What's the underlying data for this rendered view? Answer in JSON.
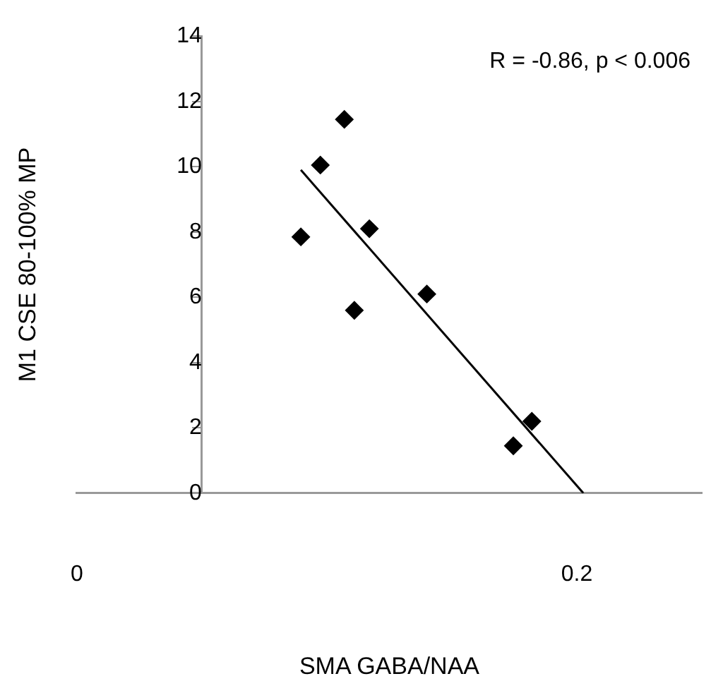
{
  "chart_data": {
    "type": "scatter",
    "xlabel": "SMA GABA/NAA",
    "ylabel": "M1 CSE 80-100% MP",
    "annotations": [
      "R = -0.86, p < 0.006"
    ],
    "series": [
      {
        "color": "#000000",
        "x": [
          0.0896,
          0.0974,
          0.107,
          0.111,
          0.117,
          0.14,
          0.1746,
          0.182
        ],
        "values": [
          7.85,
          10.05,
          11.45,
          5.6,
          8.1,
          6.1,
          1.45,
          2.2
        ]
      },
      {
        "type": "line",
        "marker": "none",
        "color": "#000000",
        "x": [
          0.0896,
          0.2026
        ],
        "values": [
          9.9,
          0
        ]
      }
    ],
    "marker": "diamond",
    "xlim": [
      0,
      0.25
    ],
    "xticks": [
      0,
      0.2
    ],
    "ylim": [
      0,
      14
    ],
    "yticks": [
      0,
      2,
      4,
      6,
      8,
      10,
      12,
      14
    ],
    "grid": false,
    "legend": false
  }
}
